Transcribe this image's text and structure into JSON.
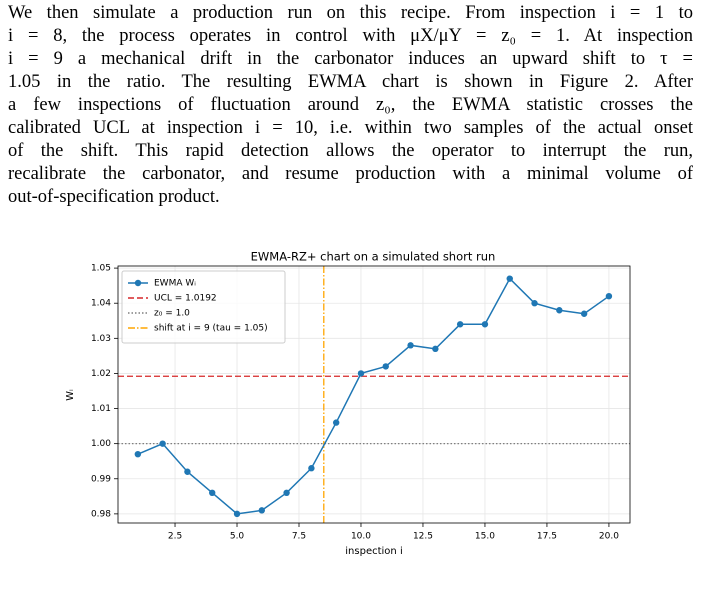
{
  "paragraph": {
    "lines": [
      "We then simulate a production run on this recipe. From inspection i = 1 to",
      "i = 8, the process operates in control with μX/μY = z₀ = 1. At inspection",
      "i = 9 a mechanical drift in the carbonator induces an upward shift to τ =",
      "1.05 in the ratio. The resulting EWMA chart is shown in Figure 2. After",
      "a few inspections of fluctuation around z₀, the EWMA statistic crosses the",
      "calibrated UCL at inspection i = 10, i.e. within two samples of the actual onset",
      "of the shift. This rapid detection allows the operator to interrupt the run,",
      "recalibrate the carbonator, and resume production with a minimal volume of",
      "out-of-specification product."
    ]
  },
  "chart_data": {
    "type": "line",
    "title": "EWMA-RZ+ chart on a simulated short run",
    "x_label": "inspection i",
    "y_label": "Wᵢ",
    "x": [
      1,
      2,
      3,
      4,
      5,
      6,
      7,
      8,
      9,
      10,
      11,
      12,
      13,
      14,
      15,
      16,
      17,
      18,
      19,
      20
    ],
    "series": [
      {
        "name": "EWMA Wᵢ",
        "color": "#1f77b4",
        "values": [
          0.997,
          1.0,
          0.992,
          0.986,
          0.98,
          0.981,
          0.986,
          0.993,
          1.006,
          1.02,
          1.022,
          1.028,
          1.027,
          1.034,
          1.034,
          1.047,
          1.04,
          1.038,
          1.037,
          1.042
        ]
      }
    ],
    "reference_lines": [
      {
        "name": "UCL = 1.0192",
        "axis": "y",
        "value": 1.0192,
        "color": "#d62728",
        "dash": "6 3"
      },
      {
        "name": "z₀ = 1.0",
        "axis": "y",
        "value": 1.0,
        "color": "#7f7f7f",
        "dash": "1.5 2"
      },
      {
        "name": "shift at i = 9 (tau = 1.05)",
        "axis": "x",
        "value": 8.5,
        "color": "#ffa500",
        "dash": "7 2 1.5 2"
      }
    ],
    "xlim": [
      0.2,
      20.85
    ],
    "ylim": [
      0.9774,
      1.0506
    ],
    "xticks": [
      2.5,
      {
        "value": 5,
        "label": "5.0"
      },
      7.5,
      {
        "value": 10,
        "label": "10.0"
      },
      12.5,
      {
        "value": 15,
        "label": "15.0"
      },
      17.5,
      {
        "value": 20,
        "label": "20.0"
      }
    ],
    "yticks": [
      0.98,
      0.99,
      {
        "value": 1,
        "label": "1.00"
      },
      1.01,
      1.02,
      1.03,
      1.04,
      {
        "value": 1.05,
        "label": "1.05"
      }
    ],
    "grid": true,
    "legend": "upper left"
  }
}
